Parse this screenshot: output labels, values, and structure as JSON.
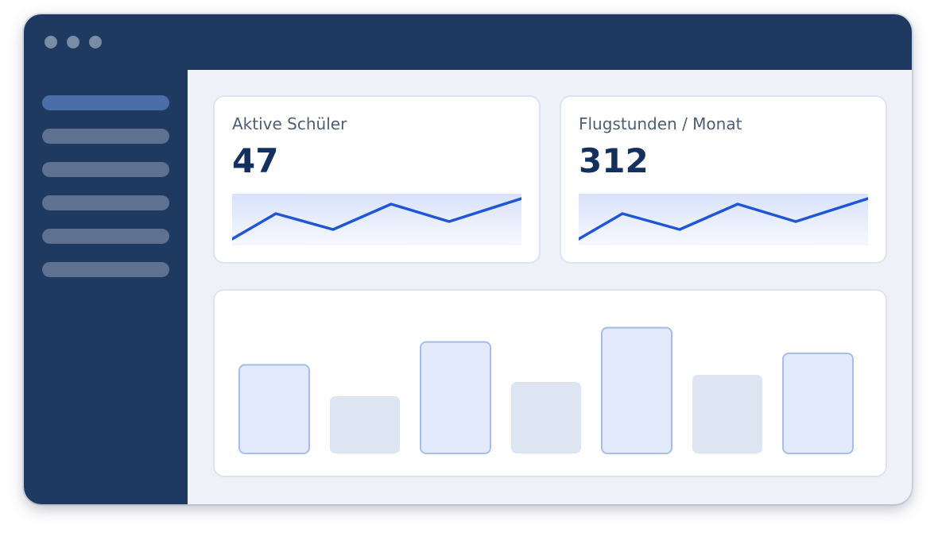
{
  "sidebar": {
    "items": [
      {
        "active": true
      },
      {
        "active": false
      },
      {
        "active": false
      },
      {
        "active": false
      },
      {
        "active": false
      },
      {
        "active": false
      }
    ]
  },
  "cards": [
    {
      "label": "Aktive Schüler",
      "value": "47"
    },
    {
      "label": "Flugstunden / Monat",
      "value": "312"
    }
  ],
  "colors": {
    "navy": "#1f3a60",
    "accent": "#1f55d8",
    "value": "#13305e"
  },
  "chart_data": {
    "type": "bar",
    "values": [
      62,
      40,
      78,
      50,
      88,
      55,
      70
    ],
    "ylim": [
      0,
      100
    ],
    "title": "",
    "xlabel": "",
    "ylabel": ""
  }
}
